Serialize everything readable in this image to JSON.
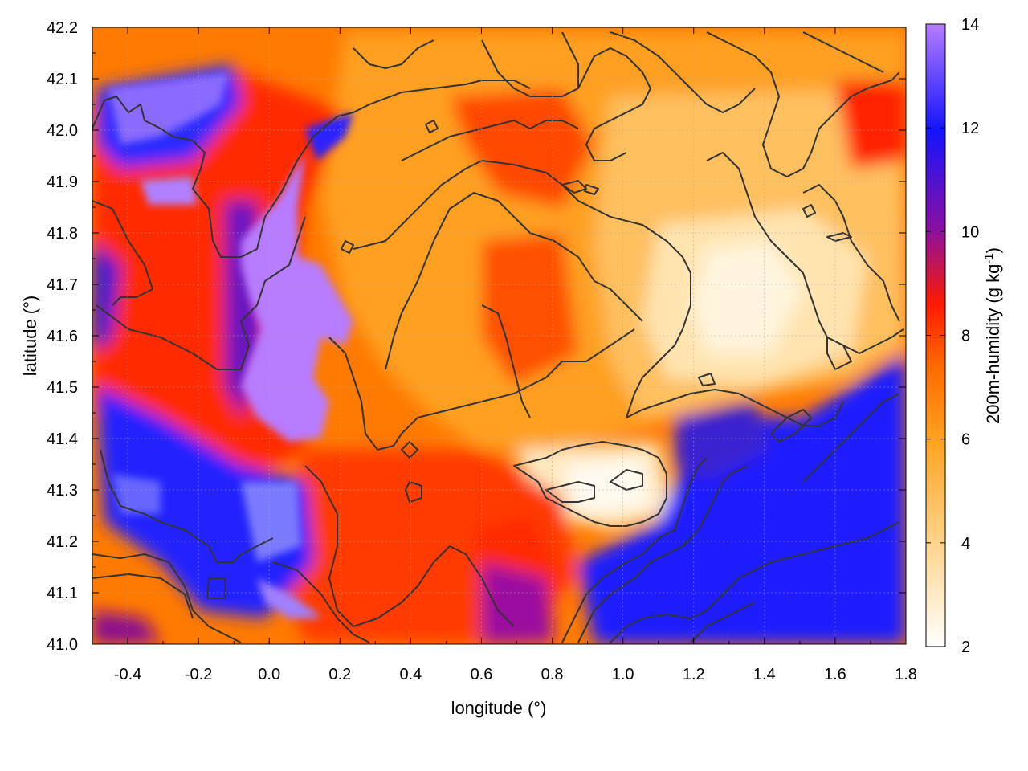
{
  "chart_data": {
    "type": "heatmap",
    "title": "",
    "xlabel": "longitude (°)",
    "ylabel": "latitude (°)",
    "colorbar_label": "200m-humidity (g kg",
    "colorbar_label_superscript": "-1",
    "colorbar_label_suffix": ")",
    "xlim": [
      -0.5,
      1.8
    ],
    "ylim": [
      41.0,
      42.2
    ],
    "xticks": [
      "-0.4",
      "-0.2",
      "0.0",
      "0.2",
      "0.4",
      "0.6",
      "0.8",
      "1.0",
      "1.2",
      "1.4",
      "1.6",
      "1.8"
    ],
    "yticks": [
      "41.0",
      "41.1",
      "41.2",
      "41.3",
      "41.4",
      "41.5",
      "41.6",
      "41.7",
      "41.8",
      "41.9",
      "42.0",
      "42.1",
      "42.2"
    ],
    "colorbar": {
      "range": [
        2,
        14
      ],
      "ticks": [
        "2",
        "4",
        "6",
        "8",
        "10",
        "12",
        "14"
      ],
      "colors": [
        "#ffffff",
        "#ffa31f",
        "#ff6a00",
        "#ff1a00",
        "#8a10a0",
        "#1414ff",
        "#b67cff"
      ]
    },
    "grid": true,
    "contours": true,
    "contour_color": "#333333"
  }
}
